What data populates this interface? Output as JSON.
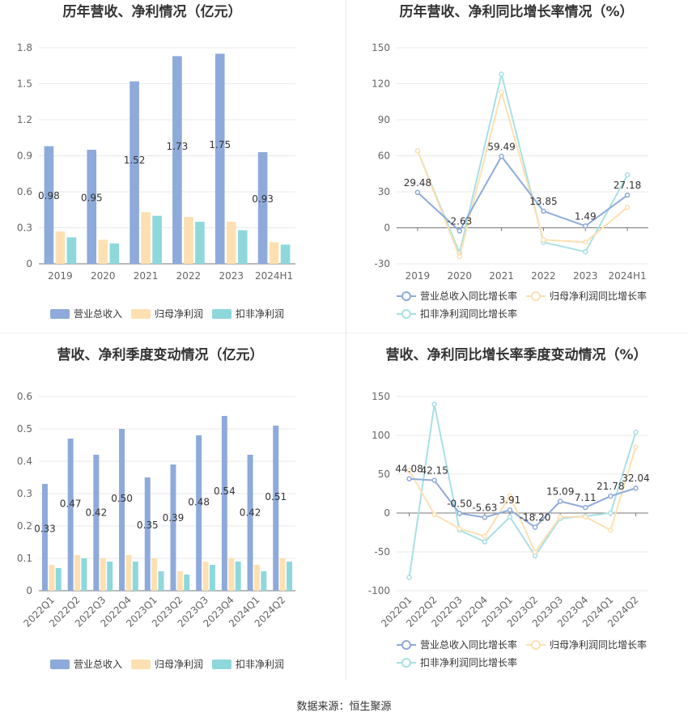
{
  "source_label": "数据来源：恒生聚源",
  "colors": {
    "revenue": "#8eaadb",
    "parent": "#fde0b2",
    "deducted": "#8ed8dc",
    "grid": "#e8e8e8",
    "axis": "#999999"
  },
  "chart_data": [
    {
      "type": "bar",
      "title": "历年营收、净利情况（亿元）",
      "categories": [
        "2019",
        "2020",
        "2021",
        "2022",
        "2023",
        "2024H1"
      ],
      "ylim": [
        0,
        1.8
      ],
      "yticks": [
        "0",
        "0.3",
        "0.6",
        "0.9",
        "1.2",
        "1.5",
        "1.8"
      ],
      "series": [
        {
          "name": "营业总收入",
          "values": [
            0.98,
            0.95,
            1.52,
            1.73,
            1.75,
            0.93
          ],
          "labels": [
            "0.98",
            "0.95",
            "1.52",
            "1.73",
            "1.75",
            "0.93"
          ]
        },
        {
          "name": "归母净利润",
          "values": [
            0.27,
            0.2,
            0.43,
            0.39,
            0.35,
            0.18
          ]
        },
        {
          "name": "扣非净利润",
          "values": [
            0.22,
            0.17,
            0.4,
            0.35,
            0.28,
            0.16
          ]
        }
      ],
      "grid": true,
      "legend": "bottom"
    },
    {
      "type": "line",
      "title": "历年营收、净利同比增长率情况（%）",
      "categories": [
        "2019",
        "2020",
        "2021",
        "2022",
        "2023",
        "2024H1"
      ],
      "ylim": [
        -30,
        150
      ],
      "yticks": [
        "-30",
        "0",
        "30",
        "60",
        "90",
        "120",
        "150"
      ],
      "series": [
        {
          "name": "营业总收入同比增长率",
          "values": [
            29.48,
            -2.63,
            59.49,
            13.85,
            1.49,
            27.18
          ],
          "labels": [
            "29.48",
            "-2.63",
            "59.49",
            "13.85",
            "1.49",
            "27.18"
          ]
        },
        {
          "name": "归母净利润同比增长率",
          "values": [
            64,
            -24,
            113,
            -10,
            -12,
            17
          ]
        },
        {
          "name": "扣非净利润同比增长率",
          "values": [
            64,
            -21,
            128,
            -12,
            -20,
            44
          ]
        }
      ],
      "grid": true,
      "legend": "bottom"
    },
    {
      "type": "bar",
      "title": "营收、净利季度变动情况（亿元）",
      "categories": [
        "2022Q1",
        "2022Q2",
        "2022Q3",
        "2022Q4",
        "2023Q1",
        "2023Q2",
        "2023Q3",
        "2023Q4",
        "2024Q1",
        "2024Q2"
      ],
      "ylim": [
        0,
        0.6
      ],
      "yticks": [
        "0",
        "0.1",
        "0.2",
        "0.3",
        "0.4",
        "0.5",
        "0.6"
      ],
      "series": [
        {
          "name": "营业总收入",
          "values": [
            0.33,
            0.47,
            0.42,
            0.5,
            0.35,
            0.39,
            0.48,
            0.54,
            0.42,
            0.51
          ],
          "labels": [
            "0.33",
            "0.47",
            "0.42",
            "0.50",
            "0.35",
            "0.39",
            "0.48",
            "0.54",
            "0.42",
            "0.51"
          ]
        },
        {
          "name": "归母净利润",
          "values": [
            0.08,
            0.11,
            0.1,
            0.11,
            0.1,
            0.06,
            0.09,
            0.1,
            0.08,
            0.1
          ]
        },
        {
          "name": "扣非净利润",
          "values": [
            0.07,
            0.1,
            0.09,
            0.09,
            0.06,
            0.05,
            0.08,
            0.09,
            0.06,
            0.09
          ]
        }
      ],
      "grid": true,
      "legend": "bottom"
    },
    {
      "type": "line",
      "title": "营收、净利同比增长率季度变动情况（%）",
      "categories": [
        "2022Q1",
        "2022Q2",
        "2022Q3",
        "2022Q4",
        "2023Q1",
        "2023Q2",
        "2023Q3",
        "2023Q4",
        "2024Q1",
        "2024Q2"
      ],
      "ylim": [
        -100,
        150
      ],
      "yticks": [
        "-100",
        "-50",
        "0",
        "50",
        "100",
        "150"
      ],
      "series": [
        {
          "name": "营业总收入同比增长率",
          "values": [
            44.08,
            42.15,
            -0.5,
            -5.63,
            3.91,
            -18.2,
            15.09,
            7.11,
            21.78,
            32.04
          ],
          "labels": [
            "44.08",
            "42.15",
            "-0.50",
            "-5.63",
            "3.91",
            "-18.20",
            "15.09",
            "7.11",
            "21.78",
            "32.04"
          ]
        },
        {
          "name": "归母净利润同比增长率",
          "values": [
            55,
            -2,
            -20,
            -30,
            22,
            -50,
            -5,
            -5,
            -22,
            85
          ]
        },
        {
          "name": "扣非净利润同比增长率",
          "values": [
            -83,
            140,
            -22,
            -37,
            -5,
            -55,
            -7,
            -4,
            0,
            104
          ]
        }
      ],
      "grid": true,
      "legend": "bottom"
    }
  ]
}
